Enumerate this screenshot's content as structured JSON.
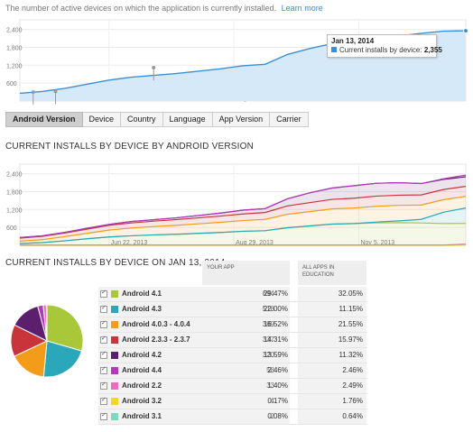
{
  "intro": {
    "text": "The number of active devices on which the application is currently installed.",
    "link": "Learn more"
  },
  "tabs": [
    {
      "label": "Android Version",
      "active": true
    },
    {
      "label": "Device"
    },
    {
      "label": "Country"
    },
    {
      "label": "Language"
    },
    {
      "label": "App Version"
    },
    {
      "label": "Carrier"
    }
  ],
  "tooltip": {
    "date": "Jan 13, 2014",
    "label": "Current installs by device:",
    "value": "2,355"
  },
  "section_titles": {
    "by_version": "CURRENT INSTALLS BY DEVICE BY ANDROID VERSION",
    "on_date": "CURRENT INSTALLS BY DEVICE ON JAN 13, 2014"
  },
  "table": {
    "your_app_header": "YOUR APP",
    "all_apps_header": "ALL APPS IN EDUCATION",
    "rows": [
      {
        "name": "Android 4.1",
        "count": "694",
        "pct": "29.47%",
        "all": "32.05%",
        "color": "#a8c83a"
      },
      {
        "name": "Android 4.3",
        "count": "518",
        "pct": "22.00%",
        "all": "11.15%",
        "color": "#2aa7b8"
      },
      {
        "name": "Android 4.0.3 - 4.0.4",
        "count": "389",
        "pct": "16.52%",
        "all": "21.55%",
        "color": "#f39c1a"
      },
      {
        "name": "Android 2.3.3 - 2.3.7",
        "count": "337",
        "pct": "14.31%",
        "all": "15.97%",
        "color": "#c9343b"
      },
      {
        "name": "Android 4.2",
        "count": "320",
        "pct": "13.59%",
        "all": "11.32%",
        "color": "#5c1f6e"
      },
      {
        "name": "Android 4.4",
        "count": "58",
        "pct": "2.46%",
        "all": "2.46%",
        "color": "#b23ab8"
      },
      {
        "name": "Android 2.2",
        "count": "33",
        "pct": "1.40%",
        "all": "2.49%",
        "color": "#e86fc0"
      },
      {
        "name": "Android 3.2",
        "count": "4",
        "pct": "0.17%",
        "all": "1.76%",
        "color": "#f5d51e"
      },
      {
        "name": "Android 3.1",
        "count": "2",
        "pct": "0.08%",
        "all": "0.64%",
        "color": "#7fd8c4"
      }
    ]
  },
  "chart_data": [
    {
      "type": "area",
      "series": [
        {
          "name": "Current installs by device",
          "color": "#3c8fd6",
          "x": [
            0,
            5,
            10,
            15,
            20,
            25,
            30,
            35,
            40,
            45,
            50,
            55,
            60,
            65,
            70,
            75,
            80,
            85,
            90,
            95,
            100
          ],
          "values": [
            260,
            320,
            420,
            560,
            700,
            800,
            860,
            920,
            1000,
            1080,
            1180,
            1230,
            1560,
            1760,
            1920,
            2030,
            2120,
            2180,
            2270,
            2340,
            2355
          ]
        }
      ],
      "x_tick_labels": [
        "Jun 22, 2013",
        "Aug 29, 2013",
        "Nov 5, 2013"
      ],
      "y_tick_labels": [
        "600",
        "1,200",
        "1,800",
        "2,400"
      ],
      "ylim": [
        0,
        2600
      ],
      "grid": true
    },
    {
      "type": "area",
      "stacked": true,
      "x": [
        0,
        5,
        10,
        15,
        20,
        25,
        30,
        35,
        40,
        45,
        50,
        55,
        60,
        65,
        70,
        75,
        80,
        85,
        90,
        95,
        100
      ],
      "series": [
        {
          "name": "Android 3.1",
          "color": "#7fd8c4",
          "values": [
            0,
            0,
            0,
            0,
            0,
            0,
            0,
            0,
            0,
            0,
            0,
            0,
            0,
            0,
            0,
            0,
            0,
            0,
            0,
            0,
            2
          ]
        },
        {
          "name": "Android 3.2",
          "color": "#f5d51e",
          "values": [
            0,
            0,
            0,
            0,
            0,
            0,
            0,
            0,
            0,
            0,
            0,
            0,
            0,
            0,
            0,
            0,
            0,
            0,
            0,
            0,
            4
          ]
        },
        {
          "name": "Android 2.2",
          "color": "#e86fc0",
          "values": [
            10,
            10,
            10,
            10,
            10,
            10,
            10,
            10,
            10,
            10,
            10,
            10,
            10,
            10,
            10,
            10,
            10,
            10,
            10,
            10,
            33
          ]
        },
        {
          "name": "Android 4.1",
          "color": "#a8c83a",
          "values": [
            50,
            80,
            140,
            210,
            270,
            310,
            340,
            360,
            390,
            420,
            460,
            480,
            580,
            640,
            700,
            720,
            740,
            750,
            740,
            720,
            694
          ]
        },
        {
          "name": "Android 4.3",
          "color": "#2aa7b8",
          "values": [
            0,
            0,
            0,
            0,
            0,
            0,
            0,
            0,
            0,
            0,
            0,
            0,
            0,
            0,
            0,
            0,
            30,
            60,
            120,
            380,
            518
          ]
        },
        {
          "name": "Android 4.0.3 - 4.0.4",
          "color": "#f39c1a",
          "values": [
            80,
            100,
            140,
            180,
            230,
            260,
            280,
            300,
            320,
            340,
            360,
            380,
            450,
            480,
            510,
            520,
            530,
            520,
            480,
            420,
            389
          ]
        },
        {
          "name": "Android 2.3.3 - 2.3.7",
          "color": "#c9343b",
          "values": [
            100,
            110,
            120,
            140,
            160,
            170,
            180,
            190,
            200,
            210,
            220,
            230,
            280,
            300,
            320,
            330,
            340,
            340,
            340,
            340,
            337
          ]
        },
        {
          "name": "Android 4.2",
          "color": "#5c1f6e",
          "values": [
            20,
            20,
            20,
            30,
            30,
            50,
            50,
            60,
            80,
            100,
            130,
            130,
            240,
            330,
            380,
            420,
            430,
            420,
            380,
            340,
            320
          ]
        },
        {
          "name": "Android 4.4",
          "color": "#b23ab8",
          "values": [
            0,
            0,
            0,
            0,
            0,
            0,
            0,
            0,
            0,
            0,
            0,
            0,
            0,
            0,
            0,
            0,
            0,
            0,
            0,
            20,
            58
          ]
        }
      ],
      "x_tick_labels": [
        "Jun 22, 2013",
        "Aug 29, 2013",
        "Nov 5, 2013"
      ],
      "y_tick_labels": [
        "600",
        "1,200",
        "1,800",
        "2,400"
      ],
      "ylim": [
        0,
        2600
      ],
      "grid": true
    },
    {
      "type": "pie",
      "labels": [
        "Android 4.1",
        "Android 4.3",
        "Android 4.0.3 - 4.0.4",
        "Android 2.3.3 - 2.3.7",
        "Android 4.2",
        "Android 4.4",
        "Android 2.2",
        "Android 3.2",
        "Android 3.1"
      ],
      "values": [
        694,
        518,
        389,
        337,
        320,
        58,
        33,
        4,
        2
      ],
      "colors": [
        "#a8c83a",
        "#2aa7b8",
        "#f39c1a",
        "#c9343b",
        "#5c1f6e",
        "#b23ab8",
        "#e86fc0",
        "#f5d51e",
        "#7fd8c4"
      ]
    }
  ]
}
